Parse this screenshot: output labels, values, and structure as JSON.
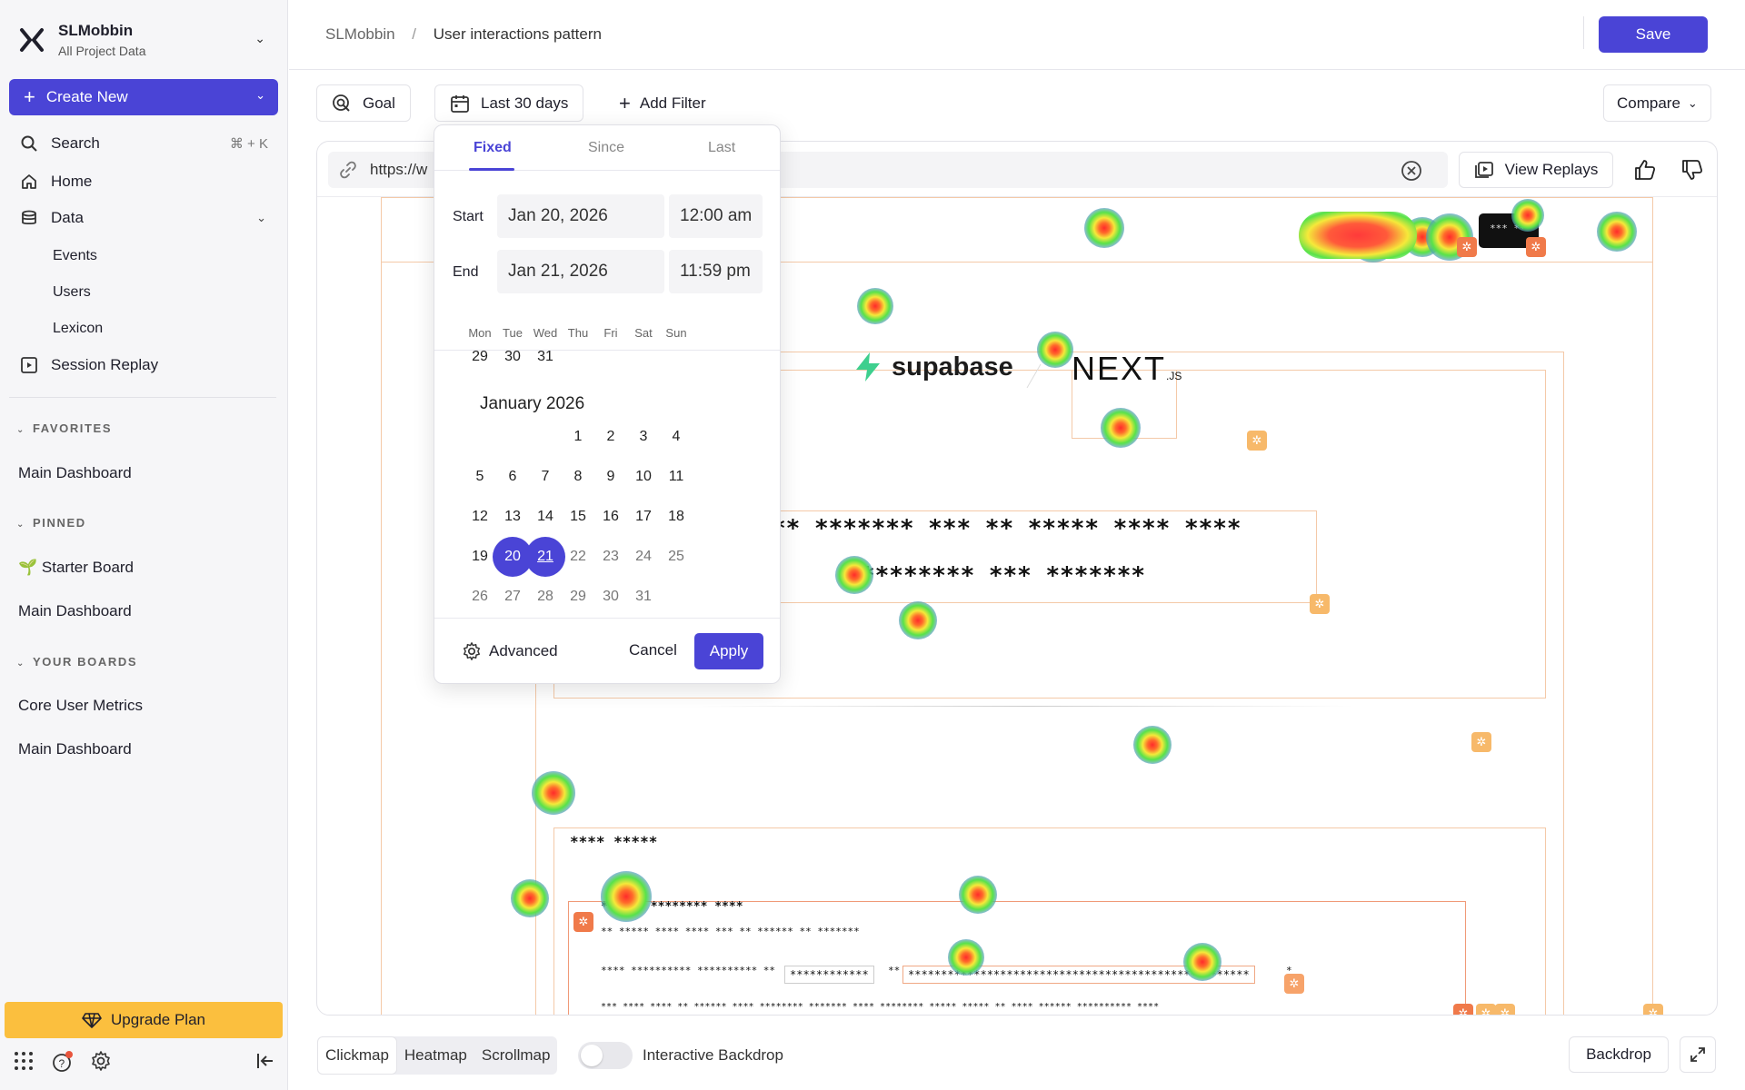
{
  "sidebar": {
    "project_name": "SLMobbin",
    "project_sub": "All Project Data",
    "create_label": "Create New",
    "nav": [
      {
        "label": "Search",
        "shortcut": "⌘ + K"
      },
      {
        "label": "Home"
      },
      {
        "label": "Data"
      },
      {
        "label": "Session Replay"
      }
    ],
    "data_items": [
      "Events",
      "Users",
      "Lexicon"
    ],
    "sections": {
      "favorites": "FAVORITES",
      "pinned": "PINNED",
      "your_boards": "YOUR BOARDS"
    },
    "favorites": [
      "Main Dashboard"
    ],
    "pinned": [
      "Starter Board",
      "Main Dashboard"
    ],
    "pinned_emoji": "🌱",
    "boards": [
      "Core User Metrics",
      "Main Dashboard"
    ],
    "upgrade_label": "Upgrade Plan"
  },
  "header": {
    "breadcrumb_root": "SLMobbin",
    "breadcrumb_sep": "/",
    "breadcrumb_current": "User interactions pattern",
    "save_label": "Save"
  },
  "toolbar": {
    "goal_label": "Goal",
    "date_label": "Last 30 days",
    "add_filter_label": "Add Filter",
    "compare_label": "Compare"
  },
  "viewer": {
    "url_value": "https://w",
    "view_replays_label": "View Replays"
  },
  "webpage": {
    "supabase": "supabase",
    "next": "NEXT",
    "next_suffix": ".JS",
    "headline_1": "** ******* *** ** ***** **** ****",
    "headline_2": "******** *** *******",
    "section_title": "**** *****",
    "row1": "*** ** ******** ****",
    "row2": "** ***** **** **** *** ** ****** ** *******",
    "row3": "**** ********** ********** **",
    "row3_box": "************",
    "row3_b": "**",
    "row3_long": "****************************************************",
    "row3_end": "*",
    "row4": "*** **** **** ** ****** **** ******** ******* **** ******** ***** ***** ** **** ****** ********** ****",
    "hdr_btn": "*** **"
  },
  "date_picker": {
    "tabs": [
      "Fixed",
      "Since",
      "Last"
    ],
    "start_label": "Start",
    "end_label": "End",
    "start_date": "Jan 20, 2026",
    "start_time": "12:00 am",
    "end_date": "Jan 21, 2026",
    "end_time": "11:59 pm",
    "weekdays": [
      "Mon",
      "Tue",
      "Wed",
      "Thu",
      "Fri",
      "Sat",
      "Sun"
    ],
    "prev_tail": [
      "29",
      "30",
      "31"
    ],
    "month_title": "January 2026",
    "weeks": [
      [
        "",
        "",
        "",
        "1",
        "2",
        "3",
        "4"
      ],
      [
        "5",
        "6",
        "7",
        "8",
        "9",
        "10",
        "11"
      ],
      [
        "12",
        "13",
        "14",
        "15",
        "16",
        "17",
        "18"
      ],
      [
        "19",
        "20",
        "21",
        "22",
        "23",
        "24",
        "25"
      ],
      [
        "26",
        "27",
        "28",
        "29",
        "30",
        "31",
        ""
      ]
    ],
    "selected": [
      "20",
      "21"
    ],
    "advanced_label": "Advanced",
    "cancel_label": "Cancel",
    "apply_label": "Apply"
  },
  "bottom": {
    "modes": [
      "Clickmap",
      "Heatmap",
      "Scrollmap"
    ],
    "active_mode": "Clickmap",
    "toggle_label": "Interactive Backdrop",
    "backdrop_label": "Backdrop"
  },
  "colors": {
    "accent": "#4a44d6",
    "upgrade": "#fbbf3e",
    "click_marker": "#f07a4a",
    "click_marker_light": "#f7b96a"
  }
}
